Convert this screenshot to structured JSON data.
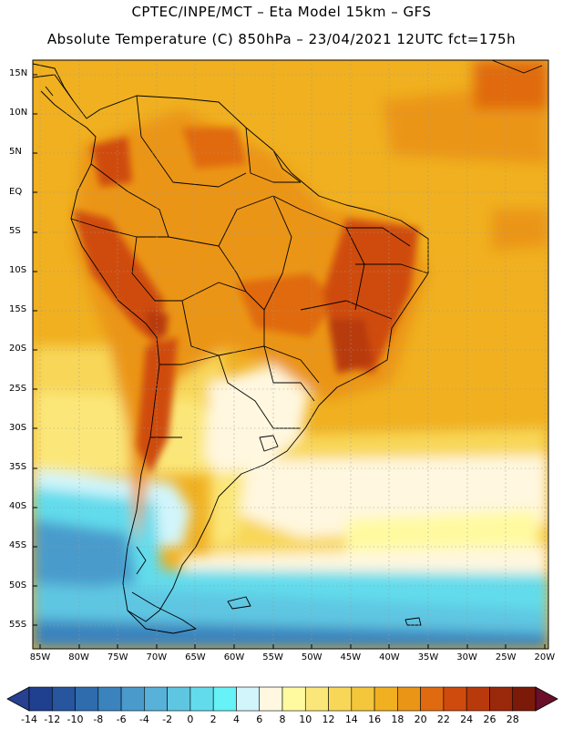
{
  "header": {
    "title_line1": "CPTEC/INPE/MCT –  Eta Model 15km – GFS",
    "title_line2": "Absolute Temperature (C) 850hPa – 23/04/2021 12UTC fct=175h"
  },
  "axes": {
    "lat_labels": [
      "15N",
      "10N",
      "5N",
      "EQ",
      "5S",
      "10S",
      "15S",
      "20S",
      "25S",
      "30S",
      "35S",
      "40S",
      "45S",
      "50S",
      "55S"
    ],
    "lon_labels": [
      "85W",
      "80W",
      "75W",
      "70W",
      "65W",
      "60W",
      "55W",
      "50W",
      "45W",
      "40W",
      "35W",
      "30W",
      "25W",
      "20W"
    ]
  },
  "colorbar": {
    "labels": [
      "-14",
      "-12",
      "-10",
      "-8",
      "-6",
      "-4",
      "-2",
      "0",
      "2",
      "4",
      "6",
      "8",
      "10",
      "12",
      "14",
      "16",
      "18",
      "20",
      "22",
      "24",
      "26",
      "28"
    ],
    "colors": [
      "#1f3f8f",
      "#27559e",
      "#2f6cae",
      "#3a83bd",
      "#4a9bcc",
      "#58b1d8",
      "#5fc6e2",
      "#62dcec",
      "#66f2f6",
      "#d2f5fb",
      "#fff7df",
      "#fffaa0",
      "#fbe779",
      "#f8d758",
      "#f3c63c",
      "#f0b020",
      "#eb9517",
      "#e06a10",
      "#cf4b0d",
      "#b83a0c",
      "#9a280a",
      "#7c1a0a"
    ]
  },
  "map": {
    "lon_range": [
      -86,
      -19.5
    ],
    "lat_range": [
      -58,
      16.5
    ]
  }
}
